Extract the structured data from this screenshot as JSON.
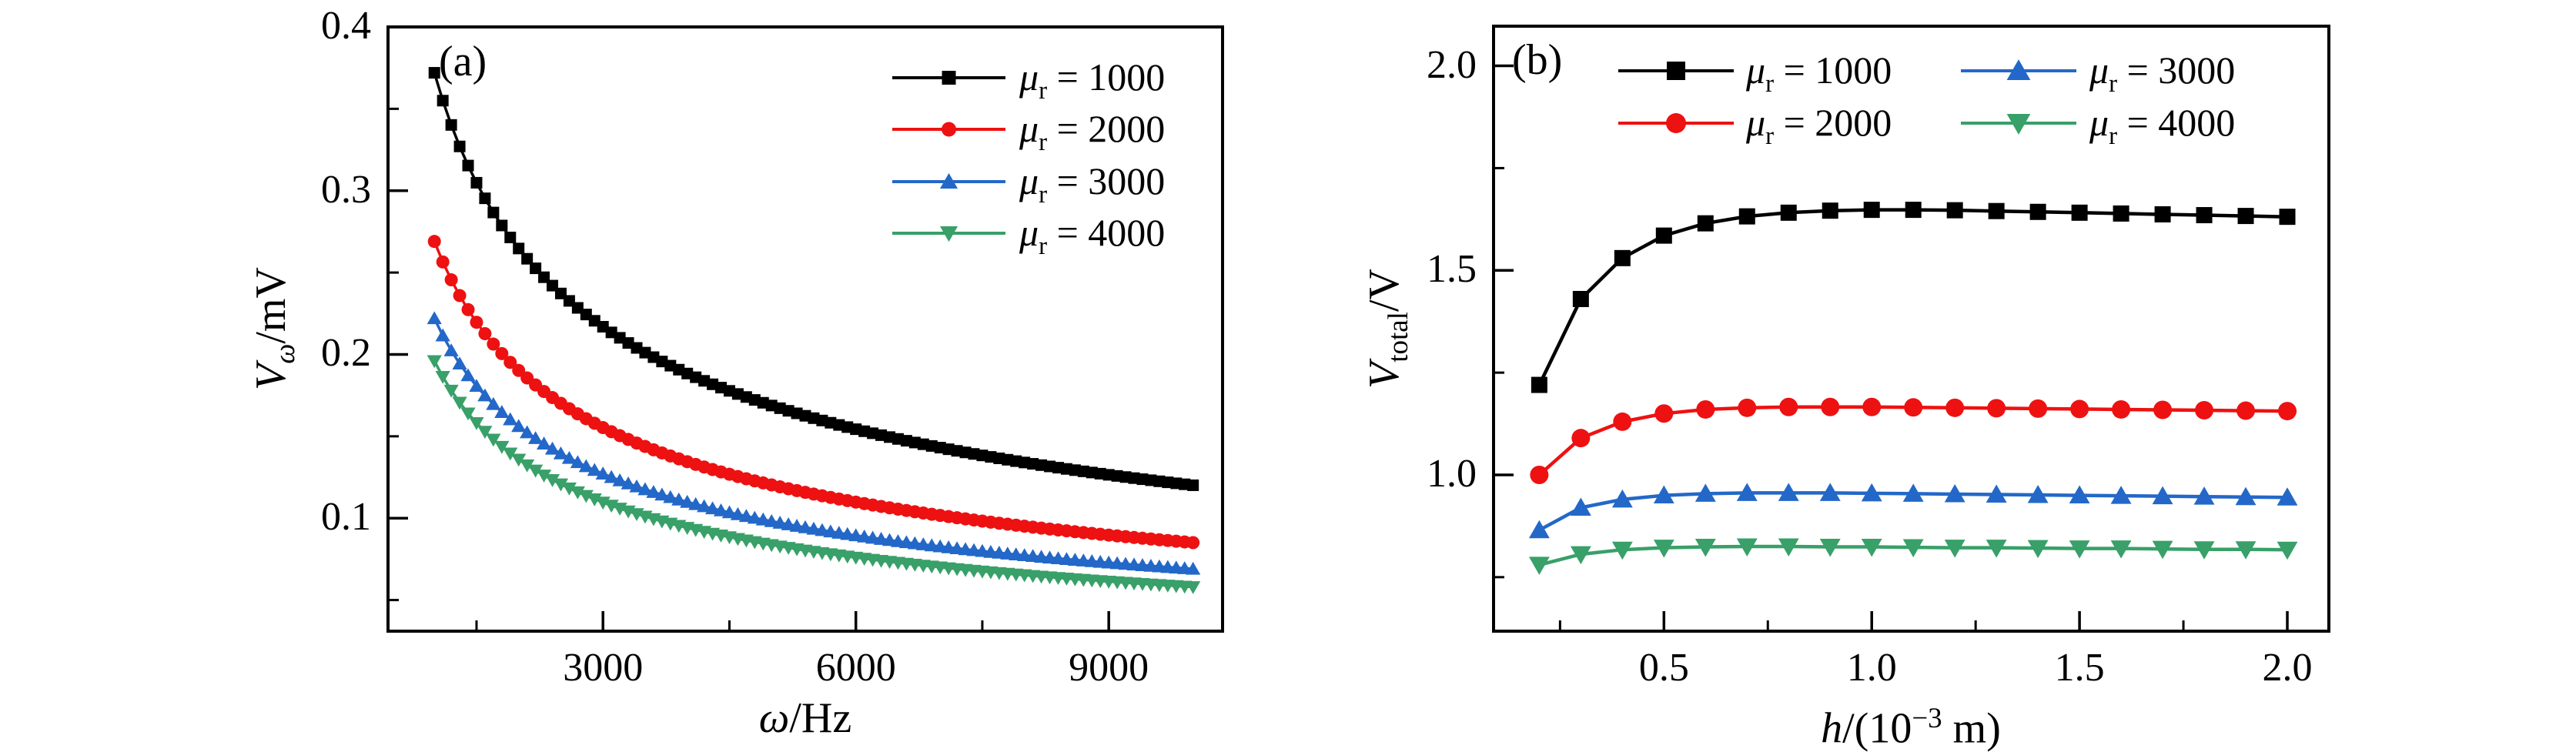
{
  "figure": {
    "background": "#ffffff",
    "frame_color": "#000000",
    "series_colors": {
      "mur1000": "#000000",
      "mur2000": "#ee1111",
      "mur3000": "#2368c8",
      "mur4000": "#38a068"
    }
  },
  "chart_data": [
    {
      "id": "a",
      "type": "line",
      "panel_label": "(a)",
      "xlabel": "ω/Hz",
      "xlabel_parts": [
        {
          "t": "ω",
          "i": true
        },
        {
          "t": "/Hz"
        }
      ],
      "ylabel": "Vω/mV",
      "ylabel_parts": [
        {
          "t": "V",
          "i": true
        },
        {
          "t": "ω",
          "i": true,
          "sub": true
        },
        {
          "t": "/mV"
        }
      ],
      "x_axis": {
        "range": [
          450,
          10350
        ],
        "major_ticks": [
          3000,
          6000,
          9000
        ],
        "tick_labels": [
          "3000",
          "6000",
          "9000"
        ],
        "minor_ticks": [
          1500,
          4500,
          7500
        ],
        "grid": false
      },
      "y_axis": {
        "range": [
          0.031,
          0.4
        ],
        "major_ticks": [
          0.1,
          0.2,
          0.3,
          0.4
        ],
        "tick_labels": [
          "0.1",
          "0.2",
          "0.3",
          "0.4"
        ],
        "minor_ticks": [
          0.05,
          0.15,
          0.25,
          0.35
        ],
        "grid": false
      },
      "legend_position": "upper-right",
      "series": [
        {
          "label": "μr = 1000",
          "label_parts": [
            {
              "t": "μ",
              "i": true
            },
            {
              "t": "r",
              "sub": true
            },
            {
              "t": " = 1000"
            }
          ],
          "color": "#000000",
          "marker": "square",
          "x_start": 1000,
          "x_stop": 10000,
          "x_step": 100,
          "power_law": {
            "V0": 0.372,
            "ref": 1000,
            "p": 0.491
          },
          "anchor_omega": [
            1000,
            2000,
            3000,
            4000,
            5000,
            6000,
            7000,
            8000,
            9000,
            10000
          ],
          "anchor_V": [
            0.372,
            0.2646,
            0.2169,
            0.1883,
            0.1688,
            0.1543,
            0.1431,
            0.134,
            0.1265,
            0.1201
          ]
        },
        {
          "label": "μr = 2000",
          "label_parts": [
            {
              "t": "μ",
              "i": true
            },
            {
              "t": "r",
              "sub": true
            },
            {
              "t": " = 2000"
            }
          ],
          "color": "#ee1111",
          "marker": "circle",
          "x_start": 1000,
          "x_stop": 10000,
          "x_step": 100,
          "power_law": {
            "V0": 0.269,
            "ref": 1000,
            "p": 0.5
          },
          "anchor_omega": [
            1000,
            2000,
            3000,
            4000,
            5000,
            6000,
            7000,
            8000,
            9000,
            10000
          ],
          "anchor_V": [
            0.269,
            0.1902,
            0.1553,
            0.1345,
            0.1203,
            0.1098,
            0.1017,
            0.0951,
            0.0897,
            0.0851
          ]
        },
        {
          "label": "μr = 3000",
          "label_parts": [
            {
              "t": "μ",
              "i": true
            },
            {
              "t": "r",
              "sub": true
            },
            {
              "t": " = 3000"
            }
          ],
          "color": "#2368c8",
          "marker": "triangle-up",
          "x_start": 1000,
          "x_stop": 10000,
          "x_step": 100,
          "power_law": {
            "V0": 0.222,
            "ref": 1000,
            "p": 0.5074
          },
          "anchor_omega": [
            1000,
            2000,
            3000,
            4000,
            5000,
            6000,
            7000,
            8000,
            9000,
            10000
          ],
          "anchor_V": [
            0.222,
            0.1562,
            0.1271,
            0.1099,
            0.0981,
            0.0894,
            0.0827,
            0.0773,
            0.0728,
            0.069
          ]
        },
        {
          "label": "μr = 4000",
          "label_parts": [
            {
              "t": "μ",
              "i": true
            },
            {
              "t": "r",
              "sub": true
            },
            {
              "t": " = 4000"
            }
          ],
          "color": "#38a068",
          "marker": "triangle-down",
          "x_start": 1000,
          "x_stop": 10000,
          "x_step": 100,
          "power_law": {
            "V0": 0.196,
            "ref": 1000,
            "p": 0.529
          },
          "anchor_omega": [
            1000,
            2000,
            3000,
            4000,
            5000,
            6000,
            7000,
            8000,
            9000,
            10000
          ],
          "anchor_V": [
            0.196,
            0.1358,
            0.1096,
            0.0941,
            0.0837,
            0.076,
            0.07,
            0.0652,
            0.0613,
            0.058
          ]
        }
      ]
    },
    {
      "id": "b",
      "type": "line",
      "panel_label": "(b)",
      "xlabel": "h/(10−3 m)",
      "xlabel_parts": [
        {
          "t": "h",
          "i": true
        },
        {
          "t": "/(10"
        },
        {
          "t": "−3",
          "sup": true
        },
        {
          "t": " m)"
        }
      ],
      "ylabel": "Vtotal/V",
      "ylabel_parts": [
        {
          "t": "V",
          "i": true
        },
        {
          "t": "total",
          "sub": true
        },
        {
          "t": "/V"
        }
      ],
      "x_axis": {
        "range": [
          0.09,
          2.1
        ],
        "major_ticks": [
          0.5,
          1.0,
          1.5,
          2.0
        ],
        "tick_labels": [
          "0.5",
          "1.0",
          "1.5",
          "2.0"
        ],
        "minor_ticks": [
          0.25,
          0.75,
          1.25,
          1.75
        ],
        "grid": false
      },
      "y_axis": {
        "range": [
          0.618,
          2.097
        ],
        "major_ticks": [
          1.0,
          1.5,
          2.0
        ],
        "tick_labels": [
          "1.0",
          "1.5",
          "2.0"
        ],
        "minor_ticks": [
          0.75,
          1.25,
          1.75
        ],
        "grid": false
      },
      "legend_position": "upper-left-two-columns",
      "x": [
        0.2,
        0.3,
        0.4,
        0.5,
        0.6,
        0.7,
        0.8,
        0.9,
        1.0,
        1.1,
        1.2,
        1.3,
        1.4,
        1.5,
        1.6,
        1.7,
        1.8,
        1.9,
        2.0
      ],
      "series": [
        {
          "label": "μr = 1000",
          "label_parts": [
            {
              "t": "μ",
              "i": true
            },
            {
              "t": "r",
              "sub": true
            },
            {
              "t": " = 1000"
            }
          ],
          "color": "#000000",
          "marker": "square",
          "values": [
            1.22,
            1.43,
            1.53,
            1.585,
            1.615,
            1.632,
            1.641,
            1.646,
            1.648,
            1.648,
            1.647,
            1.645,
            1.643,
            1.641,
            1.639,
            1.637,
            1.635,
            1.633,
            1.631
          ]
        },
        {
          "label": "μr = 2000",
          "label_parts": [
            {
              "t": "μ",
              "i": true
            },
            {
              "t": "r",
              "sub": true
            },
            {
              "t": " = 2000"
            }
          ],
          "color": "#ee1111",
          "marker": "circle",
          "values": [
            1.0,
            1.09,
            1.13,
            1.15,
            1.16,
            1.164,
            1.166,
            1.166,
            1.166,
            1.165,
            1.164,
            1.163,
            1.162,
            1.161,
            1.16,
            1.159,
            1.158,
            1.157,
            1.156
          ]
        },
        {
          "label": "μr = 3000",
          "label_parts": [
            {
              "t": "μ",
              "i": true
            },
            {
              "t": "r",
              "sub": true
            },
            {
              "t": " = 3000"
            }
          ],
          "color": "#2368c8",
          "marker": "triangle-up",
          "values": [
            0.865,
            0.92,
            0.94,
            0.95,
            0.954,
            0.956,
            0.956,
            0.956,
            0.955,
            0.954,
            0.953,
            0.952,
            0.951,
            0.95,
            0.949,
            0.948,
            0.947,
            0.946,
            0.945
          ]
        },
        {
          "label": "μr = 4000",
          "label_parts": [
            {
              "t": "μ",
              "i": true
            },
            {
              "t": "r",
              "sub": true
            },
            {
              "t": " = 4000"
            }
          ],
          "color": "#38a068",
          "marker": "triangle-down",
          "values": [
            0.78,
            0.806,
            0.817,
            0.822,
            0.824,
            0.825,
            0.825,
            0.824,
            0.824,
            0.823,
            0.822,
            0.822,
            0.821,
            0.82,
            0.82,
            0.819,
            0.818,
            0.818,
            0.817
          ]
        }
      ]
    }
  ]
}
